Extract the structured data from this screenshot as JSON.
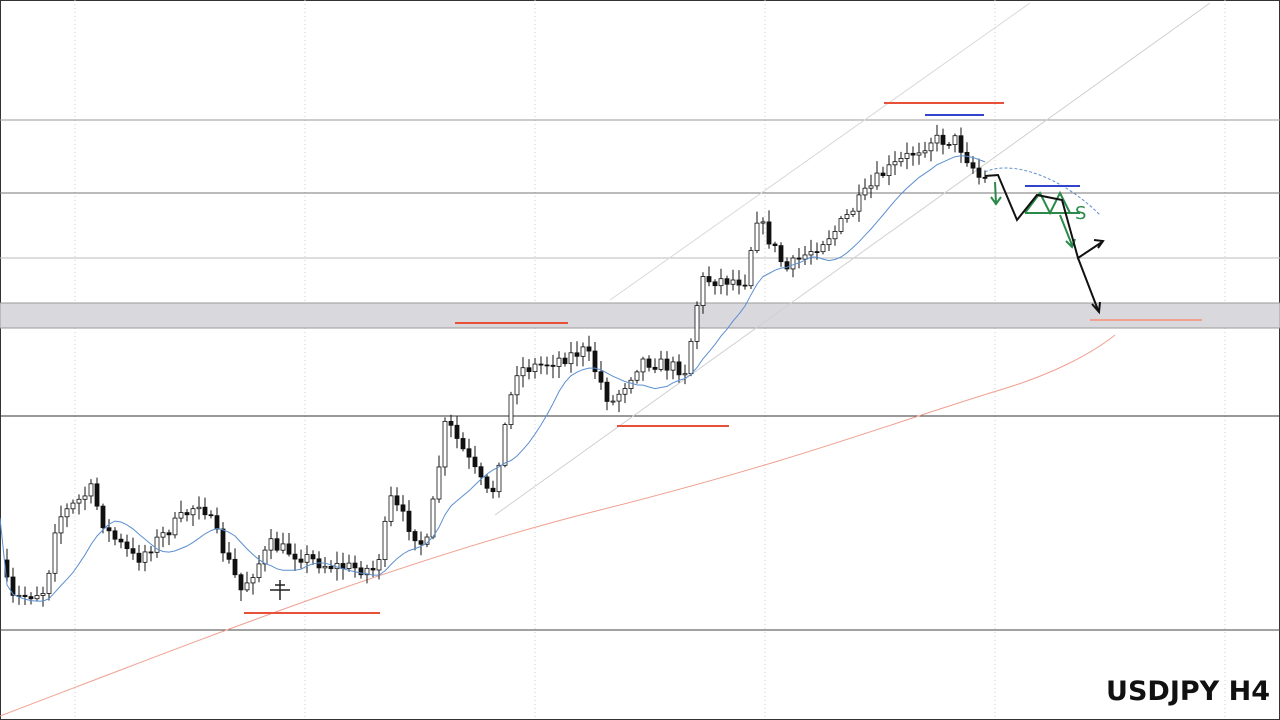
{
  "symbol_label": "USDJPY H4",
  "annotation": "S"
}
